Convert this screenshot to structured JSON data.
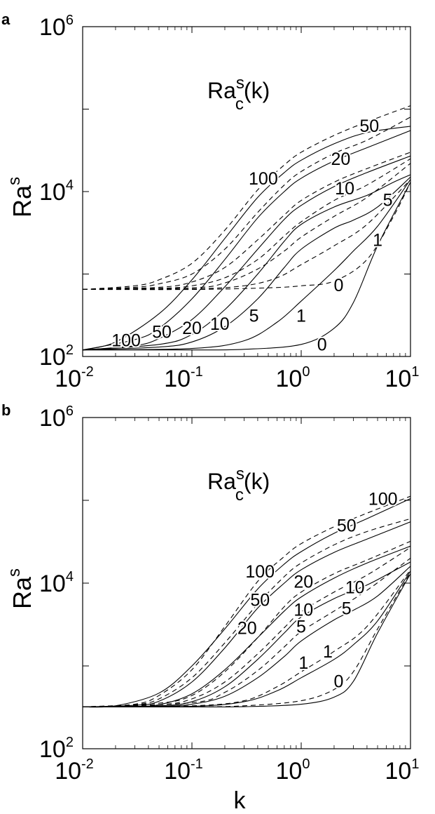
{
  "chart_data": [
    {
      "type": "line",
      "panel": "a",
      "title_main": "Ra",
      "title_sup": "s",
      "title_sub": "c",
      "title_tail": "(k)",
      "ylabel_main": "Ra",
      "ylabel_sup": "s",
      "xlabel": "",
      "x_scale": "log",
      "y_scale": "log",
      "xlim": [
        0.01,
        10
      ],
      "ylim": [
        100,
        1000000
      ],
      "x_ticks": [
        {
          "base": "10",
          "exp": "-2",
          "value": 0.01
        },
        {
          "base": "10",
          "exp": "-1",
          "value": 0.1
        },
        {
          "base": "10",
          "exp": "0",
          "value": 1
        },
        {
          "base": "10",
          "exp": "1",
          "value": 10
        }
      ],
      "y_ticks": [
        {
          "base": "10",
          "exp": "2",
          "value": 100
        },
        {
          "base": "10",
          "exp": "4",
          "value": 10000
        },
        {
          "base": "10",
          "exp": "6",
          "value": 1000000
        }
      ],
      "grid": false,
      "series": [
        {
          "label": "0",
          "style": "solid",
          "x": [
            0.01,
            0.1,
            0.3,
            1,
            2,
            3,
            5,
            10
          ],
          "y": [
            120,
            120,
            122,
            140,
            220,
            450,
            2200,
            13000
          ]
        },
        {
          "label": "1",
          "style": "solid",
          "x": [
            0.01,
            0.1,
            0.3,
            0.6,
            1,
            2,
            3,
            5,
            10
          ],
          "y": [
            120,
            125,
            155,
            260,
            470,
            1100,
            1900,
            3800,
            14000
          ]
        },
        {
          "label": "5",
          "style": "solid",
          "x": [
            0.01,
            0.05,
            0.1,
            0.2,
            0.4,
            0.7,
            1,
            2,
            3,
            5,
            10
          ],
          "y": [
            120,
            130,
            150,
            230,
            500,
            1200,
            2000,
            3600,
            4500,
            6500,
            15000
          ]
        },
        {
          "label": "10",
          "style": "solid",
          "x": [
            0.01,
            0.05,
            0.1,
            0.2,
            0.4,
            0.7,
            1,
            2,
            4,
            7,
            10
          ],
          "y": [
            120,
            140,
            185,
            370,
            1000,
            2500,
            4000,
            6500,
            9000,
            13000,
            16000
          ]
        },
        {
          "label": "20",
          "style": "solid",
          "x": [
            0.01,
            0.03,
            0.05,
            0.1,
            0.2,
            0.4,
            0.7,
            1,
            2,
            4,
            10
          ],
          "y": [
            120,
            135,
            165,
            280,
            700,
            2000,
            4600,
            6800,
            11500,
            17000,
            27000
          ]
        },
        {
          "label": "50",
          "style": "solid",
          "x": [
            0.01,
            0.03,
            0.05,
            0.1,
            0.2,
            0.4,
            0.7,
            1,
            2,
            4,
            10
          ],
          "y": [
            120,
            160,
            220,
            500,
            1500,
            4800,
            10000,
            14500,
            23500,
            34000,
            55000
          ]
        },
        {
          "label": "100",
          "style": "solid",
          "x": [
            0.01,
            0.02,
            0.05,
            0.1,
            0.2,
            0.4,
            0.7,
            1,
            2,
            4,
            10
          ],
          "y": [
            120,
            150,
            330,
            850,
            2700,
            8500,
            17000,
            24000,
            38000,
            52000,
            62000
          ]
        },
        {
          "label": "0",
          "style": "dashed",
          "x": [
            0.01,
            0.1,
            0.5,
            1,
            2,
            4,
            7,
            10
          ],
          "y": [
            650,
            650,
            680,
            720,
            820,
            1500,
            5000,
            13000
          ]
        },
        {
          "label": "1",
          "style": "dashed",
          "x": [
            0.01,
            0.1,
            0.3,
            0.6,
            1,
            2,
            4,
            10
          ],
          "y": [
            650,
            660,
            720,
            900,
            1300,
            2200,
            4000,
            14000
          ]
        },
        {
          "label": "5",
          "style": "dashed",
          "x": [
            0.01,
            0.1,
            0.2,
            0.4,
            0.7,
            1,
            2,
            4,
            10
          ],
          "y": [
            650,
            680,
            780,
            1150,
            1900,
            2800,
            5000,
            8500,
            22000
          ]
        },
        {
          "label": "10",
          "style": "dashed",
          "x": [
            0.01,
            0.05,
            0.1,
            0.2,
            0.4,
            0.7,
            1,
            2,
            4,
            10
          ],
          "y": [
            650,
            670,
            720,
            900,
            1500,
            2900,
            4300,
            7800,
            12000,
            25000
          ]
        },
        {
          "label": "20",
          "style": "dashed",
          "x": [
            0.01,
            0.05,
            0.1,
            0.2,
            0.4,
            0.7,
            1,
            2,
            4,
            10
          ],
          "y": [
            650,
            690,
            800,
            1200,
            2600,
            5200,
            7800,
            13000,
            19000,
            30000
          ]
        },
        {
          "label": "50",
          "style": "dashed",
          "x": [
            0.01,
            0.03,
            0.05,
            0.1,
            0.2,
            0.4,
            0.7,
            1,
            2,
            4,
            10
          ],
          "y": [
            650,
            690,
            760,
            1000,
            2000,
            5600,
            12000,
            17500,
            29000,
            42000,
            80000
          ]
        },
        {
          "label": "100",
          "style": "dashed",
          "x": [
            0.01,
            0.03,
            0.05,
            0.1,
            0.2,
            0.4,
            0.7,
            1,
            2,
            4,
            10
          ],
          "y": [
            650,
            720,
            850,
            1350,
            3400,
            10500,
            21000,
            30000,
            48000,
            70000,
            110000
          ]
        }
      ],
      "annotations": [
        {
          "text": "100",
          "x": 0.45,
          "y": 14500
        },
        {
          "text": "50",
          "x": 4.2,
          "y": 63000
        },
        {
          "text": "20",
          "x": 2.3,
          "y": 25000
        },
        {
          "text": "10",
          "x": 2.5,
          "y": 11000
        },
        {
          "text": "5",
          "x": 6.2,
          "y": 8000
        },
        {
          "text": "1",
          "x": 5.0,
          "y": 2600
        },
        {
          "text": "0",
          "x": 2.2,
          "y": 740
        },
        {
          "text": "100",
          "x": 0.025,
          "y": 158
        },
        {
          "text": "50",
          "x": 0.053,
          "y": 200
        },
        {
          "text": "20",
          "x": 0.1,
          "y": 224
        },
        {
          "text": "10",
          "x": 0.18,
          "y": 251
        },
        {
          "text": "5",
          "x": 0.37,
          "y": 316
        },
        {
          "text": "1",
          "x": 1.0,
          "y": 316
        },
        {
          "text": "0",
          "x": 1.55,
          "y": 141
        }
      ]
    },
    {
      "type": "line",
      "panel": "b",
      "title_main": "Ra",
      "title_sup": "s",
      "title_sub": "c",
      "title_tail": "(k)",
      "ylabel_main": "Ra",
      "ylabel_sup": "s",
      "xlabel": "k",
      "x_scale": "log",
      "y_scale": "log",
      "xlim": [
        0.01,
        10
      ],
      "ylim": [
        100,
        1000000
      ],
      "x_ticks": [
        {
          "base": "10",
          "exp": "-2",
          "value": 0.01
        },
        {
          "base": "10",
          "exp": "-1",
          "value": 0.1
        },
        {
          "base": "10",
          "exp": "0",
          "value": 1
        },
        {
          "base": "10",
          "exp": "1",
          "value": 10
        }
      ],
      "y_ticks": [
        {
          "base": "10",
          "exp": "2",
          "value": 100
        },
        {
          "base": "10",
          "exp": "4",
          "value": 10000
        },
        {
          "base": "10",
          "exp": "6",
          "value": 1000000
        }
      ],
      "grid": false,
      "series": [
        {
          "label": "0",
          "style": "solid",
          "x": [
            0.01,
            0.1,
            0.3,
            1,
            2,
            3,
            5,
            10
          ],
          "y": [
            320,
            320,
            322,
            345,
            420,
            650,
            2500,
            13000
          ]
        },
        {
          "label": "1",
          "style": "solid",
          "x": [
            0.01,
            0.1,
            0.3,
            0.6,
            1,
            2,
            3,
            5,
            10
          ],
          "y": [
            320,
            325,
            370,
            500,
            720,
            1200,
            1800,
            3500,
            14000
          ]
        },
        {
          "label": "5",
          "style": "solid",
          "x": [
            0.01,
            0.05,
            0.1,
            0.2,
            0.4,
            0.7,
            1,
            2,
            3,
            5,
            10
          ],
          "y": [
            320,
            325,
            345,
            430,
            720,
            1300,
            2000,
            3600,
            4700,
            7000,
            16000
          ]
        },
        {
          "label": "10",
          "style": "solid",
          "x": [
            0.01,
            0.05,
            0.1,
            0.2,
            0.4,
            0.7,
            1,
            2,
            4,
            7,
            10
          ],
          "y": [
            320,
            330,
            370,
            560,
            1200,
            2500,
            3900,
            6500,
            9500,
            14000,
            18000
          ]
        },
        {
          "label": "20",
          "style": "solid",
          "x": [
            0.01,
            0.03,
            0.05,
            0.1,
            0.2,
            0.4,
            0.7,
            1,
            2,
            4,
            10
          ],
          "y": [
            320,
            325,
            340,
            460,
            900,
            2200,
            4600,
            6800,
            11500,
            17500,
            28000
          ]
        },
        {
          "label": "50",
          "style": "solid",
          "x": [
            0.01,
            0.03,
            0.05,
            0.1,
            0.2,
            0.4,
            0.7,
            1,
            2,
            4,
            10
          ],
          "y": [
            320,
            335,
            375,
            640,
            1650,
            5000,
            10000,
            14500,
            23500,
            34000,
            55000
          ]
        },
        {
          "label": "100",
          "style": "solid",
          "x": [
            0.01,
            0.02,
            0.05,
            0.1,
            0.2,
            0.4,
            0.7,
            1,
            2,
            4,
            10
          ],
          "y": [
            320,
            330,
            470,
            1000,
            2800,
            8500,
            17000,
            24000,
            40000,
            60000,
            105000
          ]
        },
        {
          "label": "0",
          "style": "dashed",
          "x": [
            0.01,
            0.1,
            0.3,
            1,
            2,
            3,
            5,
            10
          ],
          "y": [
            320,
            320,
            330,
            380,
            520,
            850,
            2800,
            13500
          ]
        },
        {
          "label": "1",
          "style": "dashed",
          "x": [
            0.01,
            0.1,
            0.3,
            0.6,
            1,
            2,
            4,
            10
          ],
          "y": [
            320,
            330,
            380,
            560,
            850,
            1500,
            3000,
            14500
          ]
        },
        {
          "label": "5",
          "style": "dashed",
          "x": [
            0.01,
            0.1,
            0.2,
            0.4,
            0.7,
            1,
            2,
            4,
            10
          ],
          "y": [
            320,
            360,
            480,
            880,
            1700,
            2600,
            4600,
            8200,
            20000
          ]
        },
        {
          "label": "10",
          "style": "dashed",
          "x": [
            0.01,
            0.05,
            0.1,
            0.2,
            0.4,
            0.7,
            1,
            2,
            4,
            10
          ],
          "y": [
            320,
            340,
            400,
            640,
            1400,
            2900,
            4500,
            7800,
            12500,
            27000
          ]
        },
        {
          "label": "20",
          "style": "dashed",
          "x": [
            0.01,
            0.05,
            0.1,
            0.2,
            0.4,
            0.7,
            1,
            2,
            4,
            10
          ],
          "y": [
            320,
            355,
            440,
            850,
            2200,
            5200,
            7800,
            13000,
            19000,
            32000
          ]
        },
        {
          "label": "50",
          "style": "dashed",
          "x": [
            0.01,
            0.03,
            0.05,
            0.1,
            0.2,
            0.4,
            0.7,
            1,
            2,
            4,
            10
          ],
          "y": [
            320,
            340,
            400,
            720,
            1900,
            5600,
            12000,
            17500,
            29000,
            42000,
            60000
          ]
        },
        {
          "label": "100",
          "style": "dashed",
          "x": [
            0.01,
            0.03,
            0.05,
            0.1,
            0.2,
            0.4,
            0.7,
            1,
            2,
            4,
            10
          ],
          "y": [
            320,
            345,
            440,
            900,
            3000,
            10500,
            21000,
            30000,
            48000,
            70000,
            112000
          ]
        }
      ],
      "annotations": [
        {
          "text": "100",
          "x": 5.6,
          "y": 105000
        },
        {
          "text": "50",
          "x": 2.6,
          "y": 50000
        },
        {
          "text": "100",
          "x": 0.42,
          "y": 14000
        },
        {
          "text": "50",
          "x": 0.42,
          "y": 6300
        },
        {
          "text": "20",
          "x": 0.32,
          "y": 2900
        },
        {
          "text": "20",
          "x": 1.05,
          "y": 10500
        },
        {
          "text": "10",
          "x": 3.1,
          "y": 9000
        },
        {
          "text": "10",
          "x": 1.05,
          "y": 4800
        },
        {
          "text": "5",
          "x": 2.6,
          "y": 5000
        },
        {
          "text": "5",
          "x": 1.0,
          "y": 3000
        },
        {
          "text": "1",
          "x": 1.75,
          "y": 1500
        },
        {
          "text": "1",
          "x": 1.05,
          "y": 1100
        },
        {
          "text": "0",
          "x": 2.2,
          "y": 660
        }
      ]
    }
  ]
}
